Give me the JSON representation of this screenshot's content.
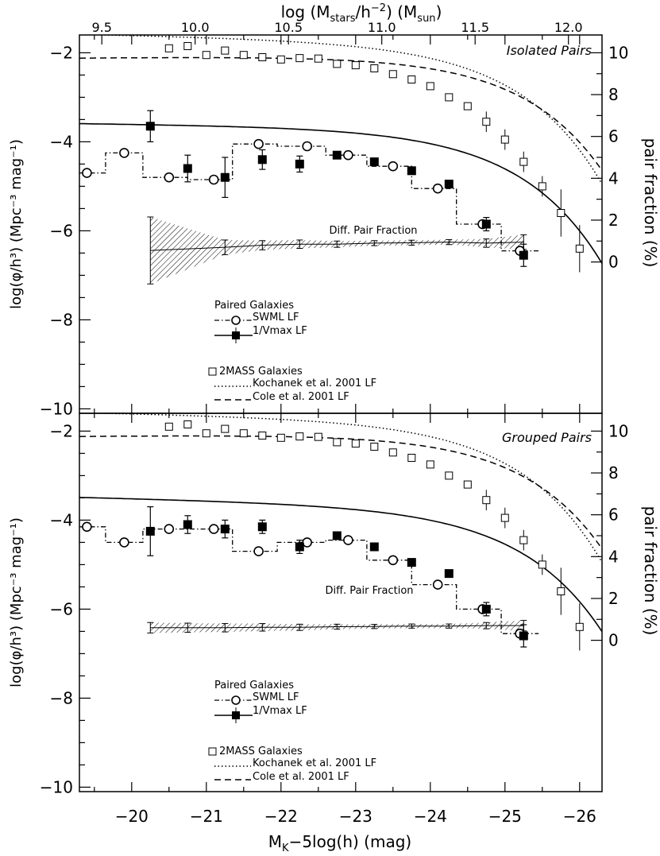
{
  "chart_data": [
    {
      "type": "scatter",
      "panel_title": "Isolated Pairs",
      "xlabel": "M",
      "xlabel_sub": "K",
      "xlabel_rest": "−5log(h)  (mag)",
      "xlim": [
        -19.3,
        -26.3
      ],
      "ylabel": "log(φ/h³)  (Mpc⁻³ mag⁻¹)",
      "ylim": [
        -10.1,
        -1.6
      ],
      "yticks": [
        -2,
        -4,
        -6,
        -8,
        -10
      ],
      "y2label": "pair fraction  (%)",
      "y2ticks": [
        10,
        8,
        6,
        4,
        2,
        0
      ],
      "top_axis": {
        "label_main": "log  (M",
        "label_sub": "stars",
        "label_mid": "/h",
        "label_sup": "−2",
        "label_end": ")  (M",
        "label_sub2": "sun",
        "label_close": ")",
        "ticks": [
          "9.5",
          "10.0",
          "10.5",
          "11.0",
          "11.5",
          "12.0"
        ]
      },
      "annotation": "Diff. Pair Fraction",
      "legend": {
        "paired_title": "Paired Galaxies",
        "swml_label": "SWML LF",
        "vmax_label": "1/Vmax LF",
        "mass_title": "2MASS Galaxies",
        "kochanek_label": "Kochanek et al. 2001 LF",
        "cole_label": "Cole et al. 2001 LF"
      },
      "twomass_points": {
        "x": [
          -20.5,
          -20.75,
          -21.0,
          -21.25,
          -21.5,
          -21.75,
          -22.0,
          -22.25,
          -22.5,
          -22.75,
          -23.0,
          -23.25,
          -23.5,
          -23.75,
          -24.0,
          -24.25,
          -24.5,
          -24.75,
          -25.0,
          -25.25,
          -25.5,
          -25.75,
          -26.0
        ],
        "y": [
          -1.9,
          -1.85,
          -2.05,
          -1.95,
          -2.05,
          -2.1,
          -2.15,
          -2.12,
          -2.13,
          -2.25,
          -2.28,
          -2.35,
          -2.48,
          -2.6,
          -2.75,
          -3.0,
          -3.2,
          -3.55,
          -3.95,
          -4.45,
          -5.0,
          -5.6,
          -6.4
        ]
      },
      "swml_points": {
        "x": [
          -19.4,
          -19.9,
          -20.5,
          -21.1,
          -21.7,
          -22.35,
          -22.9,
          -23.5,
          -24.1,
          -24.7,
          -25.2
        ],
        "y": [
          -4.7,
          -4.25,
          -4.8,
          -4.85,
          -4.05,
          -4.1,
          -4.3,
          -4.55,
          -5.05,
          -5.85,
          -6.45
        ]
      },
      "vmax_points": {
        "x": [
          -20.25,
          -20.75,
          -21.25,
          -21.75,
          -22.25,
          -22.75,
          -23.25,
          -23.75,
          -24.25,
          -24.75,
          -25.25
        ],
        "y": [
          -3.65,
          -4.6,
          -4.8,
          -4.4,
          -4.5,
          -4.3,
          -4.45,
          -4.65,
          -4.95,
          -5.85,
          -6.55
        ],
        "err": [
          0.35,
          0.3,
          0.45,
          0.22,
          0.18,
          0.08,
          0.08,
          0.08,
          0.08,
          0.15,
          0.25
        ]
      },
      "pair_fraction": {
        "x": [
          -20.25,
          -21.25,
          -21.75,
          -22.25,
          -22.75,
          -23.25,
          -23.75,
          -24.25,
          -24.75,
          -25.25
        ],
        "y": [
          0.55,
          0.7,
          0.8,
          0.85,
          0.85,
          0.9,
          0.92,
          0.95,
          0.9,
          0.95
        ],
        "err": [
          1.6,
          0.35,
          0.22,
          0.2,
          0.15,
          0.12,
          0.12,
          0.12,
          0.2,
          0.35
        ]
      },
      "schechter": {
        "M_star": -24.2,
        "alpha": -1.05,
        "log_phi_star": -3.65
      }
    },
    {
      "type": "scatter",
      "panel_title": "Grouped Pairs",
      "xlim": [
        -19.3,
        -26.3
      ],
      "ylim": [
        -10.1,
        -1.6
      ],
      "yticks": [
        -2,
        -4,
        -6,
        -8,
        -10
      ],
      "y2label": "pair fraction  (%)",
      "y2ticks": [
        10,
        8,
        6,
        4,
        2,
        0
      ],
      "xticks": [
        -20,
        -21,
        -22,
        -23,
        -24,
        -25,
        -26
      ],
      "annotation": "Diff. Pair Fraction",
      "legend": {
        "paired_title": "Paired Galaxies",
        "swml_label": "SWML LF",
        "vmax_label": "1/Vmax LF",
        "mass_title": "2MASS Galaxies",
        "kochanek_label": "Kochanek et al. 2001 LF",
        "cole_label": "Cole et al. 2001 LF"
      },
      "twomass_points": {
        "x": [
          -20.5,
          -20.75,
          -21.0,
          -21.25,
          -21.5,
          -21.75,
          -22.0,
          -22.25,
          -22.5,
          -22.75,
          -23.0,
          -23.25,
          -23.5,
          -23.75,
          -24.0,
          -24.25,
          -24.5,
          -24.75,
          -25.0,
          -25.25,
          -25.5,
          -25.75,
          -26.0
        ],
        "y": [
          -1.9,
          -1.85,
          -2.05,
          -1.95,
          -2.05,
          -2.1,
          -2.15,
          -2.12,
          -2.13,
          -2.25,
          -2.28,
          -2.35,
          -2.48,
          -2.6,
          -2.75,
          -3.0,
          -3.2,
          -3.55,
          -3.95,
          -4.45,
          -5.0,
          -5.6,
          -6.4
        ]
      },
      "swml_points": {
        "x": [
          -19.4,
          -19.9,
          -20.5,
          -21.1,
          -21.7,
          -22.35,
          -22.9,
          -23.5,
          -24.1,
          -24.7,
          -25.2
        ],
        "y": [
          -4.15,
          -4.5,
          -4.2,
          -4.2,
          -4.7,
          -4.5,
          -4.45,
          -4.9,
          -5.45,
          -6.0,
          -6.55
        ]
      },
      "vmax_points": {
        "x": [
          -20.25,
          -20.75,
          -21.25,
          -21.75,
          -22.25,
          -22.75,
          -23.25,
          -23.75,
          -24.25,
          -24.75,
          -25.25
        ],
        "y": [
          -4.25,
          -4.1,
          -4.2,
          -4.15,
          -4.6,
          -4.35,
          -4.6,
          -4.95,
          -5.2,
          -6.0,
          -6.6
        ],
        "err": [
          0.55,
          0.2,
          0.2,
          0.15,
          0.15,
          0.08,
          0.08,
          0.08,
          0.08,
          0.15,
          0.25
        ]
      },
      "pair_fraction": {
        "x": [
          -20.25,
          -20.75,
          -21.25,
          -21.75,
          -22.25,
          -22.75,
          -23.25,
          -23.75,
          -24.25,
          -24.75,
          -25.25
        ],
        "y": [
          0.6,
          0.6,
          0.6,
          0.62,
          0.62,
          0.65,
          0.66,
          0.68,
          0.68,
          0.7,
          0.7
        ],
        "err": [
          0.25,
          0.22,
          0.2,
          0.18,
          0.15,
          0.12,
          0.1,
          0.1,
          0.1,
          0.15,
          0.25
        ]
      },
      "schechter": {
        "M_star": -24.3,
        "alpha": -1.1,
        "log_phi_star": -3.65
      }
    }
  ]
}
